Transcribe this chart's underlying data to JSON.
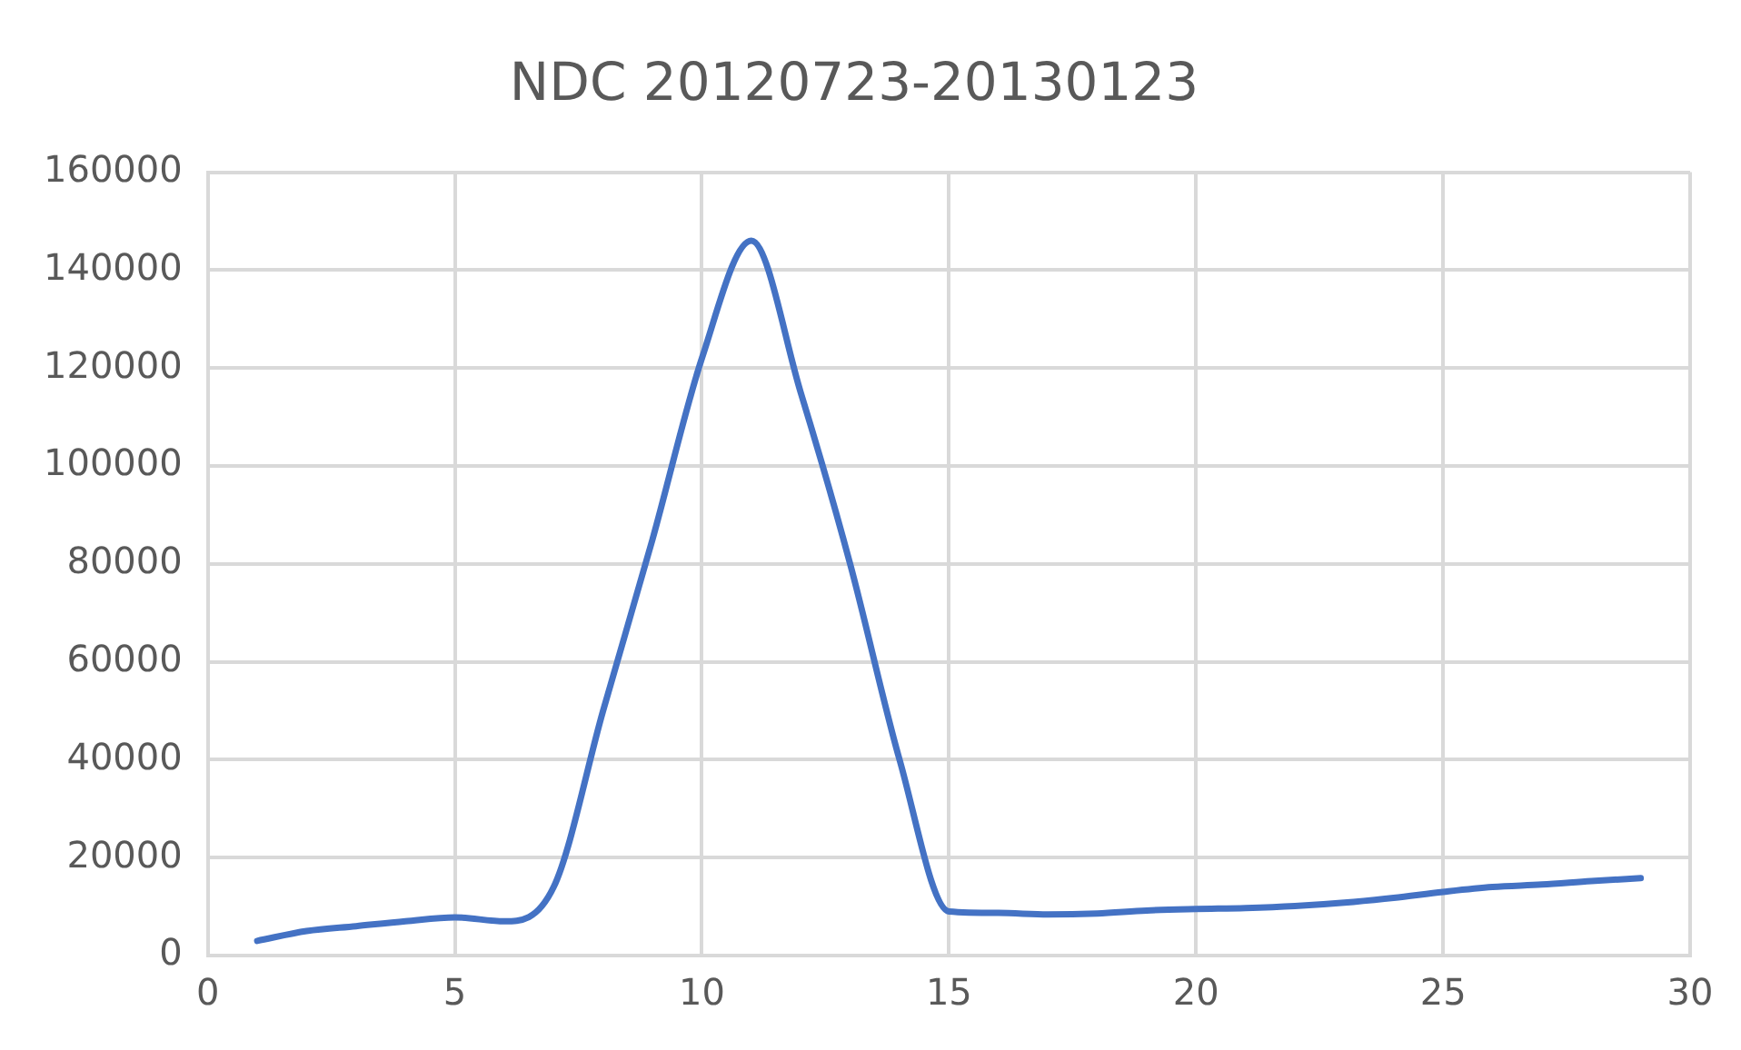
{
  "chart_data": {
    "type": "line",
    "title": "NDC 20120723-20130123",
    "x": [
      1,
      2,
      3,
      4,
      5,
      6,
      7,
      8,
      9,
      10,
      11,
      12,
      13,
      14,
      15,
      16,
      17,
      18,
      19,
      20,
      21,
      22,
      23,
      24,
      25,
      26,
      27,
      28,
      29
    ],
    "series": [
      {
        "color": "#4472c4",
        "values": [
          3000,
          5000,
          6000,
          7000,
          7800,
          7000,
          14000,
          50000,
          85000,
          122000,
          146000,
          115000,
          80000,
          40000,
          9000,
          8700,
          8400,
          8600,
          9200,
          9500,
          9700,
          10100,
          10800,
          11800,
          13000,
          14000,
          14500,
          15200,
          15800
        ]
      }
    ],
    "xlim": [
      0,
      30
    ],
    "xticks": [
      0,
      5,
      10,
      15,
      20,
      25,
      30
    ],
    "ylim": [
      0,
      160000
    ],
    "yticks": [
      0,
      20000,
      40000,
      60000,
      80000,
      100000,
      120000,
      140000,
      160000
    ],
    "grid": true,
    "legend": false,
    "marker": "none",
    "line_style": "solid"
  }
}
